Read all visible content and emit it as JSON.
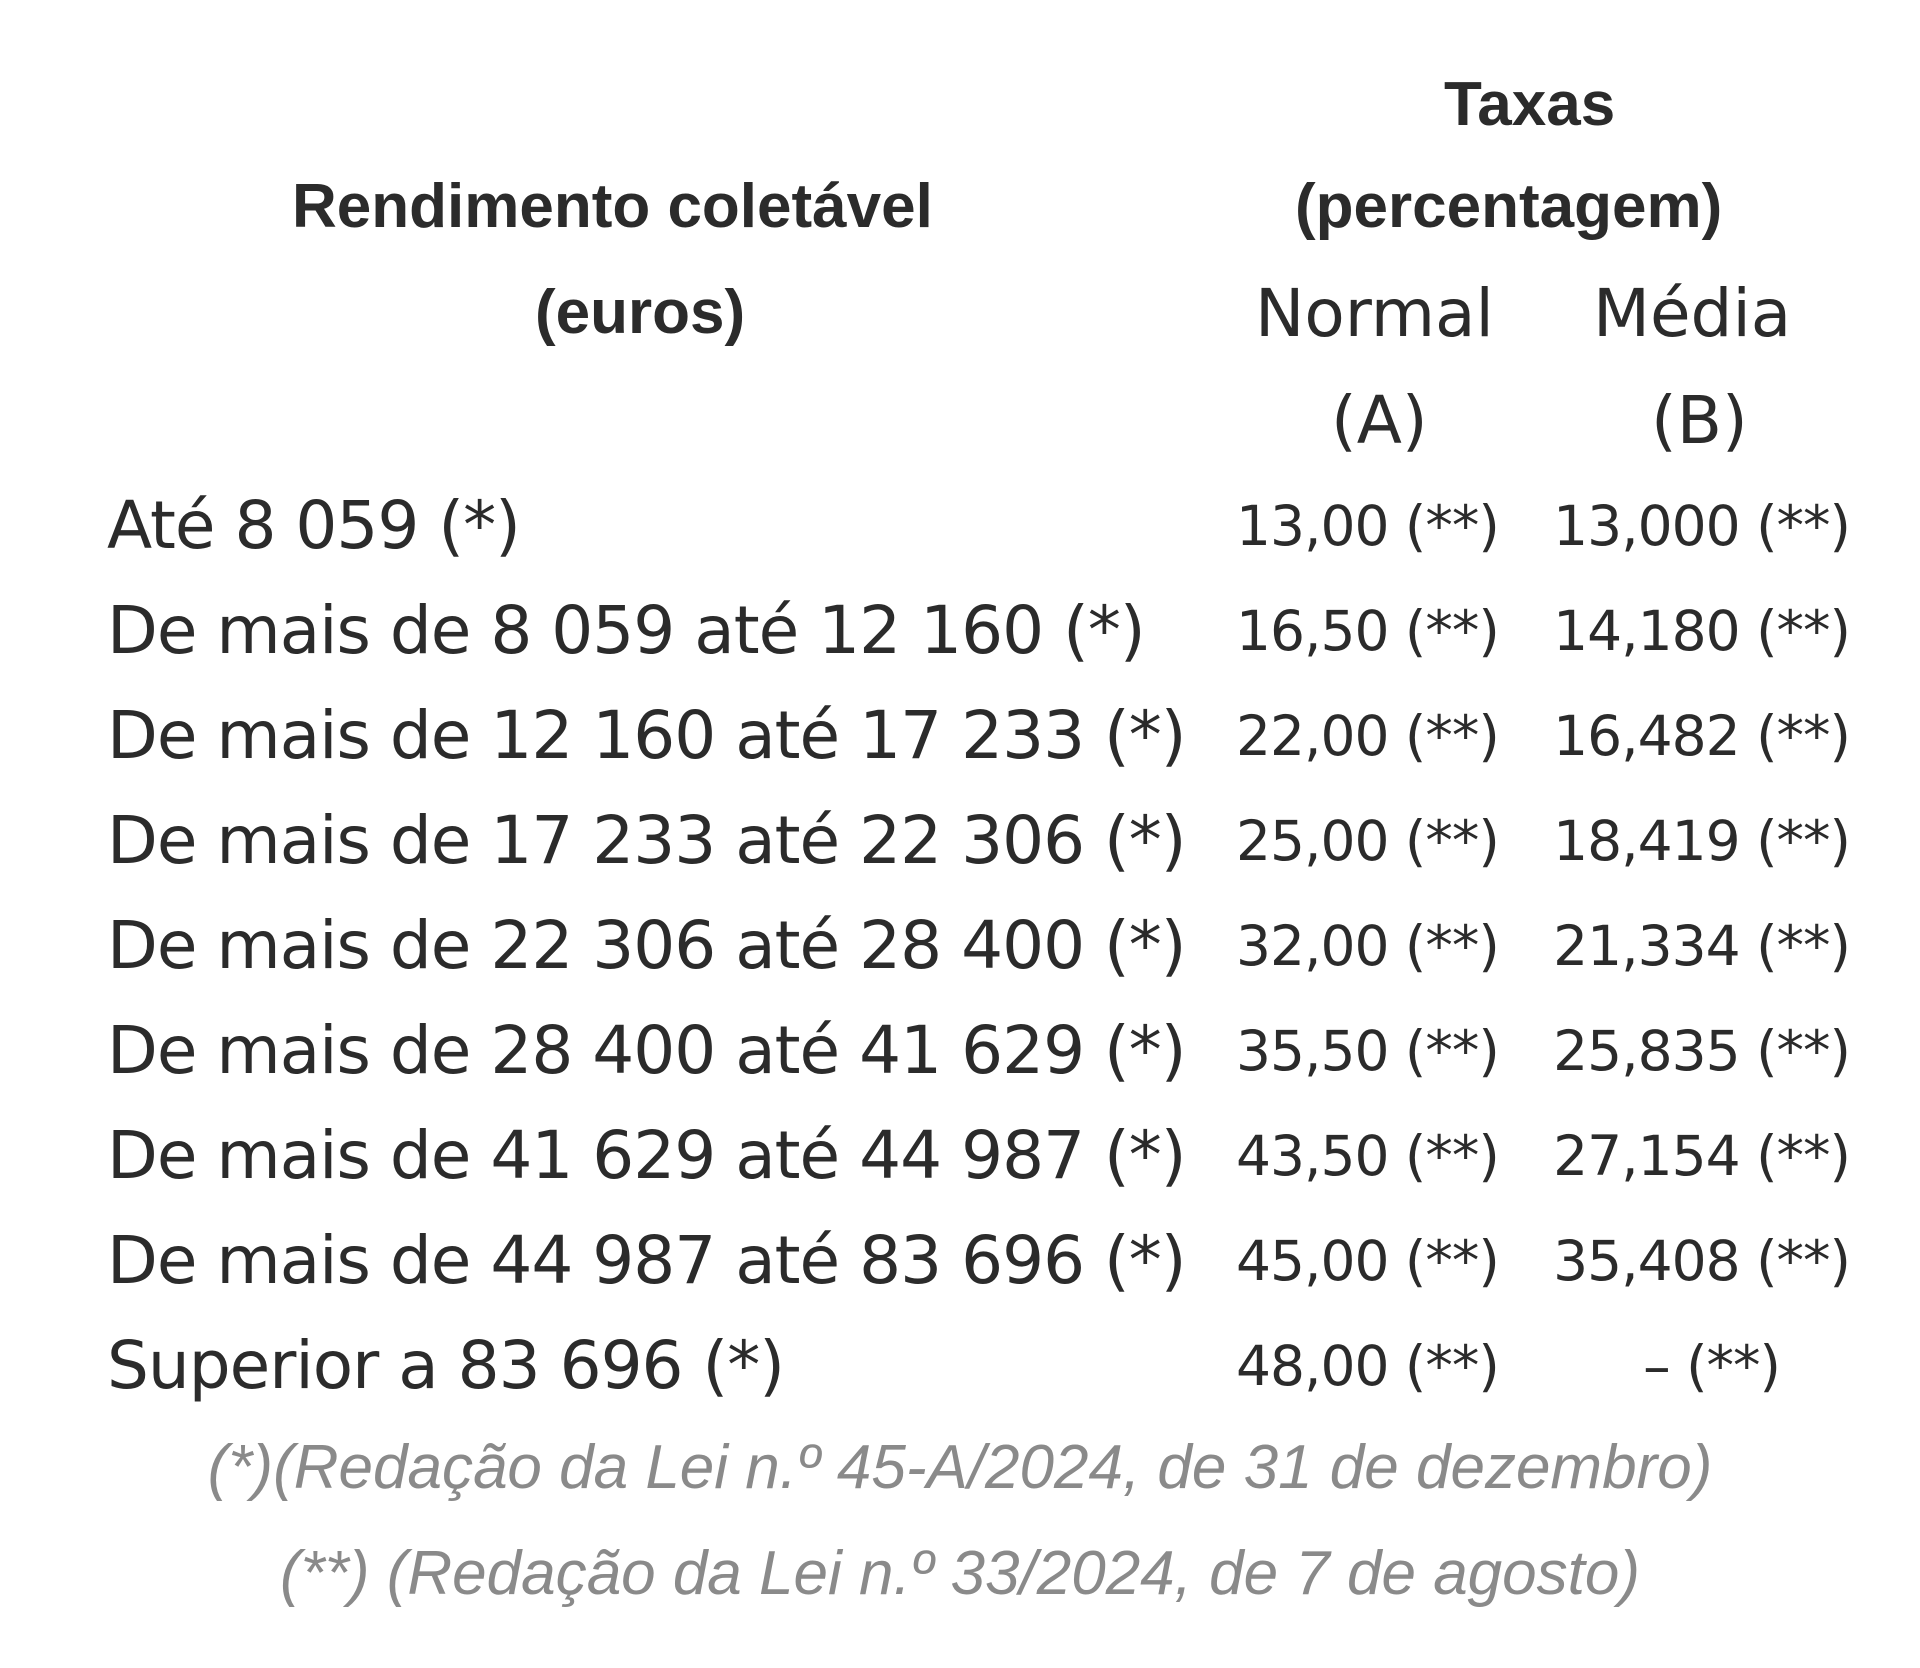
{
  "header": {
    "income_title": "Rendimento coletável",
    "income_unit": "(euros)",
    "rates_title": "Taxas",
    "rates_unit": "(percentagem)",
    "col_normal": "Normal",
    "col_normal_letter": "(A)",
    "col_media": "Média",
    "col_media_letter": "(B)"
  },
  "rows": [
    {
      "label": "Até 8 059 (*)",
      "normal": "13,00 (**)",
      "media": "13,000 (**)"
    },
    {
      "label": "De mais de 8 059 até 12 160 (*)",
      "normal": "16,50 (**)",
      "media": "14,180 (**)"
    },
    {
      "label": "De mais de 12 160 até 17 233 (*)",
      "normal": "22,00 (**)",
      "media": "16,482 (**)"
    },
    {
      "label": "De mais de 17 233 até 22 306 (*)",
      "normal": "25,00 (**)",
      "media": "18,419 (**)"
    },
    {
      "label": "De mais de 22 306 até 28 400 (*)",
      "normal": "32,00 (**)",
      "media": "21,334 (**)"
    },
    {
      "label": "De mais de 28 400 até 41 629 (*)",
      "normal": "35,50 (**)",
      "media": "25,835 (**)"
    },
    {
      "label": "De mais de 41 629 até 44 987 (*)",
      "normal": "43,50 (**)",
      "media": "27,154 (**)"
    },
    {
      "label": "De mais de 44 987 até 83 696 (*)",
      "normal": "45,00 (**)",
      "media": "35,408 (**)"
    },
    {
      "label": "Superior a 83 696 (*)",
      "normal": "48,00 (**)",
      "media": "–  (**)"
    }
  ],
  "footnotes": [
    "(*)(Redação da Lei n.º 45-A/2024, de 31 de dezembro)",
    "(**) (Redação da Lei n.º 33/2024, de 7 de agosto)"
  ]
}
